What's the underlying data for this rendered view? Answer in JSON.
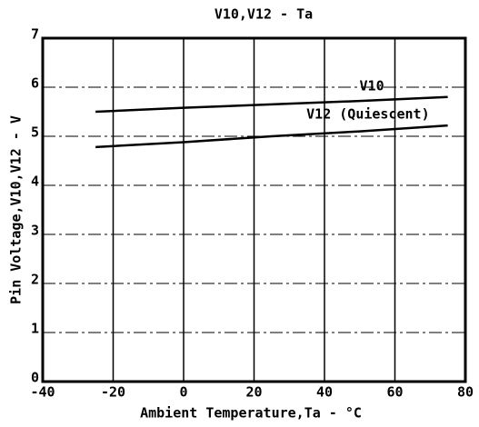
{
  "chart_data": {
    "type": "line",
    "title": "V10,V12 - Ta",
    "x_label": "Ambient Temperature,Ta - °C",
    "y_label": "Pin Voltage,V10,V12 - V",
    "x": [
      -25,
      0,
      25,
      50,
      75
    ],
    "series": [
      {
        "name": "V10",
        "color": "#000000",
        "values": [
          5.5,
          5.58,
          5.65,
          5.72,
          5.8
        ]
      },
      {
        "name": "V12 (Quiescent)",
        "color": "#000000",
        "values": [
          4.78,
          4.88,
          5.0,
          5.1,
          5.22
        ]
      }
    ],
    "xlim": [
      -40,
      80
    ],
    "xticks": [
      -40,
      -20,
      0,
      20,
      40,
      60,
      80
    ],
    "ylim": [
      0,
      7
    ],
    "yticks": [
      0,
      1,
      2,
      3,
      4,
      5,
      6,
      7
    ],
    "grid": true
  }
}
